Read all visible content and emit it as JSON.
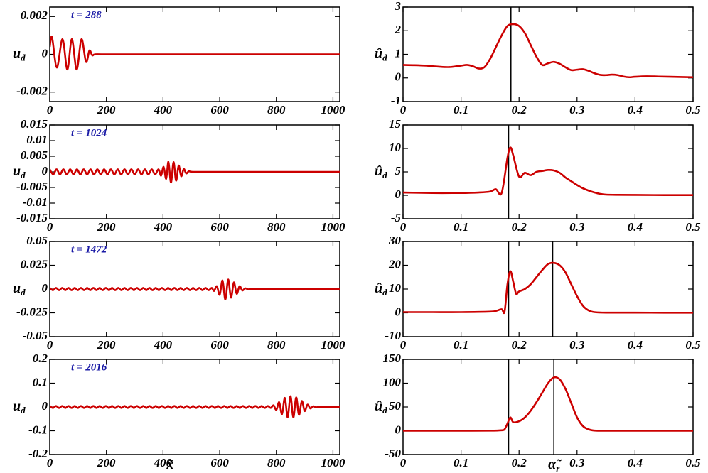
{
  "chart_data": [
    {
      "type": "line",
      "annotation": "t = 288",
      "ylabel": "u",
      "ylabel_sub": "d",
      "color": "#cc0000",
      "x": [
        0,
        8,
        25,
        45,
        62,
        78,
        95,
        112,
        128,
        140,
        150,
        160,
        200,
        1024
      ],
      "values": [
        0.0004,
        0.0009,
        -0.0007,
        0.0008,
        -0.0008,
        0.0008,
        -0.0008,
        0.0008,
        -0.0004,
        0.0002,
        -5e-05,
        0,
        0,
        0
      ],
      "xlim": [
        0,
        1024
      ],
      "xticks": [
        0,
        200,
        400,
        600,
        800,
        1000
      ],
      "ylim": [
        -0.0025,
        0.0025
      ],
      "yticks": [
        -0.002,
        0,
        0.002
      ]
    },
    {
      "type": "line",
      "ylabel": "û",
      "ylabel_sub": "d",
      "color": "#cc0000",
      "x": [
        0,
        0.02,
        0.04,
        0.06,
        0.08,
        0.1,
        0.11,
        0.12,
        0.13,
        0.14,
        0.15,
        0.16,
        0.17,
        0.18,
        0.19,
        0.2,
        0.21,
        0.22,
        0.23,
        0.24,
        0.25,
        0.26,
        0.27,
        0.28,
        0.29,
        0.3,
        0.31,
        0.32,
        0.33,
        0.34,
        0.35,
        0.36,
        0.37,
        0.38,
        0.39,
        0.4,
        0.42,
        0.44,
        0.46,
        0.48,
        0.5
      ],
      "values": [
        0.55,
        0.54,
        0.52,
        0.48,
        0.46,
        0.52,
        0.55,
        0.5,
        0.4,
        0.45,
        0.8,
        1.3,
        1.8,
        2.2,
        2.28,
        2.2,
        1.9,
        1.4,
        0.9,
        0.55,
        0.62,
        0.68,
        0.6,
        0.45,
        0.33,
        0.35,
        0.37,
        0.3,
        0.2,
        0.13,
        0.12,
        0.14,
        0.12,
        0.06,
        0.03,
        0.05,
        0.07,
        0.06,
        0.05,
        0.04,
        0.03
      ],
      "vlines": [
        0.186
      ],
      "xlim": [
        0,
        0.5
      ],
      "xticks": [
        0,
        0.1,
        0.2,
        0.3,
        0.4,
        0.5
      ],
      "ylim": [
        -1,
        3
      ],
      "yticks": [
        -1,
        0,
        1,
        2,
        3
      ]
    },
    {
      "type": "line",
      "annotation": "t = 1024",
      "ylabel": "u",
      "ylabel_sub": "d",
      "color": "#cc0000",
      "x": [
        0,
        12,
        24,
        36,
        48,
        60,
        72,
        84,
        96,
        108,
        120,
        132,
        144,
        156,
        168,
        180,
        192,
        204,
        216,
        228,
        240,
        252,
        264,
        276,
        288,
        300,
        312,
        324,
        336,
        348,
        360,
        372,
        384,
        393,
        402,
        411,
        419,
        428,
        437,
        446,
        455,
        464,
        473,
        482,
        491,
        505,
        1024
      ],
      "values": [
        0.0008,
        -0.0008,
        0.0008,
        -0.0008,
        0.0008,
        -0.0008,
        0.0008,
        -0.0008,
        0.0008,
        -0.0008,
        0.0008,
        -0.0008,
        0.0008,
        -0.0008,
        0.0008,
        -0.0008,
        0.0008,
        -0.0008,
        0.0008,
        -0.0008,
        0.0008,
        -0.0008,
        0.0008,
        -0.0008,
        0.0008,
        -0.0008,
        0.0008,
        -0.0008,
        0.0008,
        -0.0008,
        0.0008,
        -0.0008,
        0.0008,
        -0.0012,
        0.0016,
        -0.0022,
        0.0032,
        -0.0034,
        0.0031,
        -0.0028,
        0.002,
        -0.0014,
        0.0009,
        -0.0005,
        0.0002,
        0,
        0
      ],
      "xlim": [
        0,
        1024
      ],
      "xticks": [
        0,
        200,
        400,
        600,
        800,
        1000
      ],
      "ylim": [
        -0.015,
        0.015
      ],
      "yticks": [
        -0.015,
        -0.01,
        -0.005,
        0,
        0.005,
        0.01,
        0.015
      ]
    },
    {
      "type": "line",
      "ylabel": "û",
      "ylabel_sub": "d",
      "color": "#cc0000",
      "x": [
        0,
        0.05,
        0.1,
        0.13,
        0.15,
        0.16,
        0.17,
        0.18,
        0.185,
        0.19,
        0.2,
        0.21,
        0.22,
        0.23,
        0.24,
        0.25,
        0.26,
        0.27,
        0.28,
        0.29,
        0.3,
        0.31,
        0.32,
        0.33,
        0.34,
        0.35,
        0.37,
        0.4,
        0.45,
        0.5
      ],
      "values": [
        0.6,
        0.5,
        0.5,
        0.6,
        0.8,
        1.3,
        0.5,
        8,
        10.2,
        8.5,
        4,
        4.8,
        4.3,
        5,
        5.2,
        5.4,
        5.3,
        4.8,
        3.8,
        3,
        2.2,
        1.5,
        1,
        0.6,
        0.3,
        0.15,
        0.1,
        0.08,
        0.05,
        0.05
      ],
      "vlines": [
        0.182
      ],
      "xlim": [
        0,
        0.5
      ],
      "xticks": [
        0,
        0.1,
        0.2,
        0.3,
        0.4,
        0.5
      ],
      "ylim": [
        -5,
        15
      ],
      "yticks": [
        -5,
        0,
        5,
        10,
        15
      ]
    },
    {
      "type": "line",
      "annotation": "t = 1472",
      "ylabel": "u",
      "ylabel_sub": "d",
      "color": "#cc0000",
      "x": [
        0,
        11,
        22,
        33,
        44,
        55,
        66,
        77,
        88,
        99,
        110,
        121,
        132,
        143,
        154,
        165,
        176,
        187,
        198,
        209,
        220,
        231,
        242,
        253,
        264,
        275,
        286,
        297,
        308,
        319,
        330,
        341,
        352,
        363,
        374,
        385,
        396,
        407,
        418,
        429,
        440,
        451,
        462,
        473,
        484,
        495,
        506,
        517,
        528,
        539,
        550,
        561,
        572,
        580,
        590,
        600,
        610,
        620,
        630,
        640,
        650,
        660,
        670,
        680,
        690,
        700,
        712,
        1024
      ],
      "values": [
        0.0012,
        -0.0012,
        0.0012,
        -0.0012,
        0.0012,
        -0.0012,
        0.0012,
        -0.0012,
        0.0012,
        -0.0012,
        0.0012,
        -0.0012,
        0.0012,
        -0.0012,
        0.0012,
        -0.0012,
        0.0012,
        -0.0012,
        0.0012,
        -0.0012,
        0.0012,
        -0.0012,
        0.0012,
        -0.0012,
        0.0012,
        -0.0012,
        0.0012,
        -0.0012,
        0.0012,
        -0.0012,
        0.0012,
        -0.0012,
        0.0012,
        -0.0012,
        0.0012,
        -0.0012,
        0.0012,
        -0.0012,
        0.0012,
        -0.0012,
        0.0012,
        -0.0012,
        0.0012,
        -0.0012,
        0.0012,
        -0.0012,
        0.0012,
        -0.0012,
        0.0012,
        -0.0012,
        0.0012,
        -0.0012,
        0.0012,
        -0.002,
        0.003,
        -0.006,
        0.009,
        -0.011,
        0.01,
        -0.009,
        0.007,
        -0.005,
        0.003,
        -0.0015,
        0.0008,
        -0.0003,
        0,
        0
      ],
      "xlim": [
        0,
        1024
      ],
      "xticks": [
        0,
        200,
        400,
        600,
        800,
        1000
      ],
      "ylim": [
        -0.05,
        0.05
      ],
      "yticks": [
        -0.05,
        -0.025,
        0,
        0.025,
        0.05
      ]
    },
    {
      "type": "line",
      "ylabel": "û",
      "ylabel_sub": "d",
      "color": "#cc0000",
      "x": [
        0,
        0.05,
        0.1,
        0.15,
        0.16,
        0.17,
        0.175,
        0.18,
        0.185,
        0.19,
        0.195,
        0.2,
        0.21,
        0.22,
        0.23,
        0.24,
        0.25,
        0.26,
        0.27,
        0.28,
        0.29,
        0.3,
        0.31,
        0.32,
        0.33,
        0.35,
        0.4,
        0.45,
        0.5
      ],
      "values": [
        0.3,
        0.3,
        0.3,
        0.5,
        0.8,
        1.5,
        0.5,
        12,
        17.5,
        13,
        8,
        9,
        10,
        12,
        15,
        18,
        20.5,
        21,
        20,
        17,
        12,
        7,
        3,
        1,
        0.3,
        0.1,
        0.1,
        0.05,
        0.05
      ],
      "vlines": [
        0.182,
        0.258
      ],
      "xlim": [
        0,
        0.5
      ],
      "xticks": [
        0,
        0.1,
        0.2,
        0.3,
        0.4,
        0.5
      ],
      "ylim": [
        -10,
        30
      ],
      "yticks": [
        -10,
        0,
        10,
        20,
        30
      ]
    },
    {
      "type": "line",
      "annotation": "t = 2016",
      "ylabel": "u",
      "ylabel_sub": "d",
      "xlabel": "x̃",
      "color": "#cc0000",
      "x": [
        0,
        11,
        22,
        33,
        44,
        55,
        66,
        77,
        88,
        99,
        110,
        121,
        132,
        143,
        154,
        165,
        176,
        187,
        198,
        209,
        220,
        231,
        242,
        253,
        264,
        275,
        286,
        297,
        308,
        319,
        330,
        341,
        352,
        363,
        374,
        385,
        396,
        407,
        418,
        429,
        440,
        451,
        462,
        473,
        484,
        495,
        506,
        517,
        528,
        539,
        550,
        561,
        572,
        583,
        594,
        605,
        616,
        627,
        638,
        649,
        660,
        671,
        682,
        693,
        704,
        715,
        726,
        737,
        748,
        759,
        770,
        780,
        790,
        800,
        810,
        820,
        830,
        840,
        850,
        860,
        870,
        880,
        890,
        900,
        910,
        920,
        930,
        940,
        950,
        962,
        1024
      ],
      "values": [
        0.004,
        -0.004,
        0.004,
        -0.004,
        0.004,
        -0.004,
        0.004,
        -0.004,
        0.004,
        -0.004,
        0.004,
        -0.004,
        0.004,
        -0.004,
        0.004,
        -0.004,
        0.004,
        -0.004,
        0.004,
        -0.004,
        0.004,
        -0.004,
        0.004,
        -0.004,
        0.004,
        -0.004,
        0.004,
        -0.004,
        0.004,
        -0.004,
        0.004,
        -0.004,
        0.004,
        -0.004,
        0.004,
        -0.004,
        0.004,
        -0.004,
        0.004,
        -0.004,
        0.004,
        -0.004,
        0.004,
        -0.004,
        0.004,
        -0.004,
        0.004,
        -0.004,
        0.004,
        -0.004,
        0.004,
        -0.004,
        0.004,
        -0.004,
        0.004,
        -0.004,
        0.004,
        -0.004,
        0.004,
        -0.004,
        0.004,
        -0.004,
        0.004,
        -0.004,
        0.004,
        -0.004,
        0.004,
        -0.004,
        0.004,
        -0.004,
        0.004,
        -0.004,
        0.007,
        -0.012,
        0.02,
        -0.03,
        0.038,
        -0.043,
        0.045,
        -0.044,
        0.04,
        -0.033,
        0.025,
        -0.017,
        0.01,
        -0.006,
        0.003,
        -0.0015,
        0.0006,
        0,
        0
      ],
      "xlim": [
        0,
        1024
      ],
      "xticks": [
        0,
        200,
        400,
        600,
        800,
        1000
      ],
      "ylim": [
        -0.2,
        0.2
      ],
      "yticks": [
        -0.2,
        -0.1,
        0,
        0.1,
        0.2
      ]
    },
    {
      "type": "line",
      "ylabel": "û",
      "ylabel_sub": "d",
      "xlabel": "α̃",
      "xlabel_sub": "r",
      "color": "#cc0000",
      "x": [
        0,
        0.05,
        0.1,
        0.15,
        0.17,
        0.175,
        0.18,
        0.185,
        0.19,
        0.2,
        0.21,
        0.22,
        0.23,
        0.24,
        0.25,
        0.26,
        0.27,
        0.28,
        0.29,
        0.3,
        0.31,
        0.32,
        0.33,
        0.35,
        0.4,
        0.45,
        0.5
      ],
      "values": [
        0,
        0,
        0,
        0.2,
        1,
        3,
        15,
        28,
        18,
        20,
        28,
        42,
        60,
        80,
        100,
        112,
        108,
        88,
        58,
        28,
        10,
        3,
        0.5,
        0,
        0,
        0,
        0
      ],
      "vlines": [
        0.182,
        0.26
      ],
      "xlim": [
        0,
        0.5
      ],
      "xticks": [
        0,
        0.1,
        0.2,
        0.3,
        0.4,
        0.5
      ],
      "ylim": [
        -50,
        150
      ],
      "yticks": [
        -50,
        0,
        50,
        100,
        150
      ]
    }
  ]
}
